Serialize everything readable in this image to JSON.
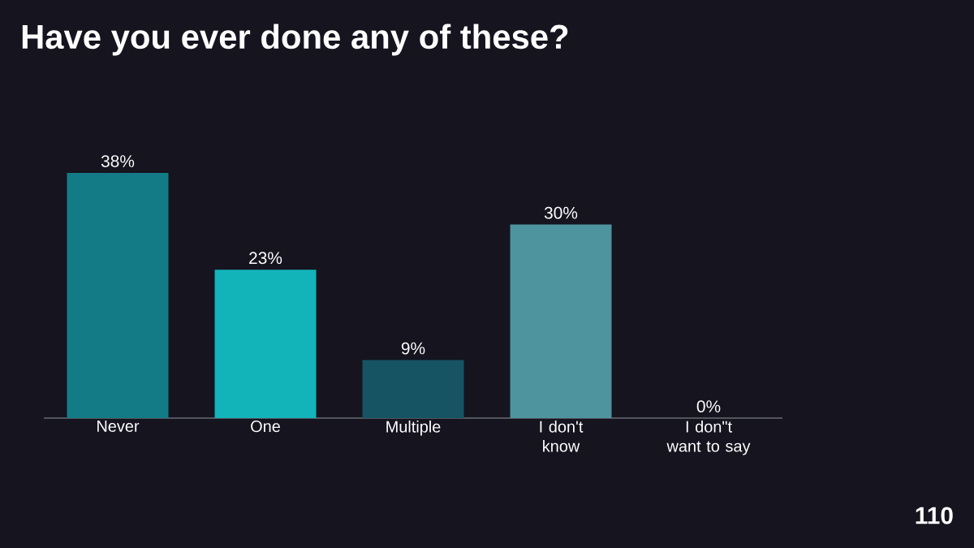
{
  "chart_data": {
    "type": "bar",
    "title": "Have you ever done any of these?",
    "categories": [
      "Never",
      "One",
      "Multiple",
      "I don't know",
      "I don\"t want to say"
    ],
    "values": [
      38,
      23,
      9,
      30,
      0
    ],
    "value_labels": [
      "38%",
      "23%",
      "9%",
      "30%",
      "0%"
    ],
    "colors": [
      "#137b86",
      "#12b4ba",
      "#165463",
      "#4e949e",
      "#2a8f99"
    ],
    "annotations": [
      "110"
    ]
  }
}
